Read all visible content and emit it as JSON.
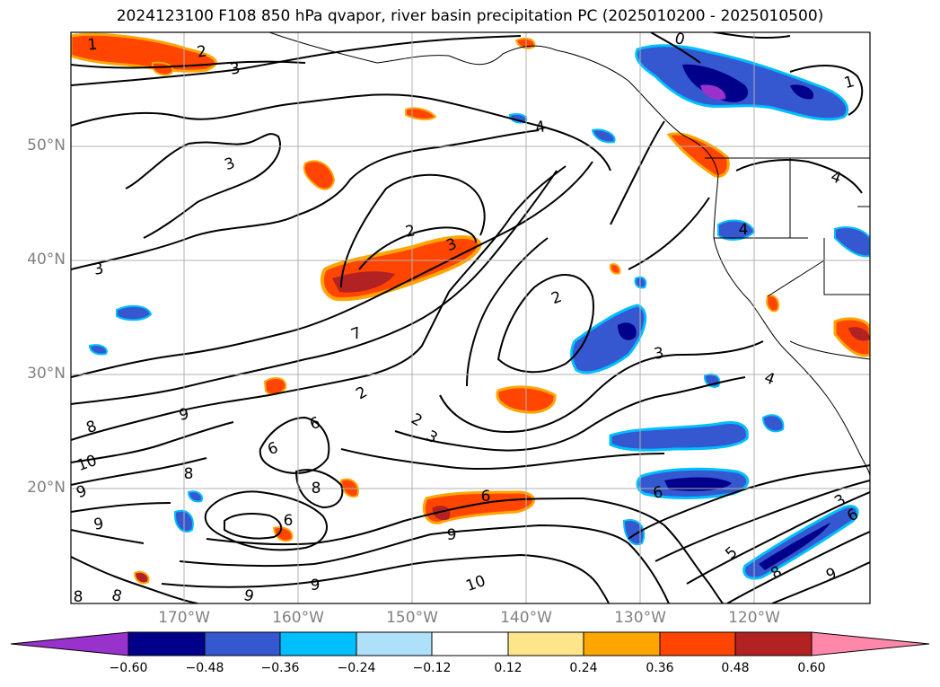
{
  "title": "2024123100 F108 850 hPa qvapor, river basin precipitation PC (2025010200 - 2025010500)",
  "lat_labels": [
    "50°N",
    "40°N",
    "30°N",
    "20°N"
  ],
  "lon_labels": [
    "170°W",
    "160°W",
    "150°W",
    "140°W",
    "130°W",
    "120°W"
  ],
  "colorbar": {
    "ticks": [
      "−0.60",
      "−0.48",
      "−0.36",
      "−0.24",
      "−0.12",
      "0.12",
      "0.24",
      "0.36",
      "0.48",
      "0.60"
    ],
    "colors": [
      "#9932cc",
      "#00008b",
      "#3557cf",
      "#00bfff",
      "#afe0fa",
      "#ffffff",
      "#fde68a",
      "#ffa500",
      "#ff4500",
      "#b22222",
      "#ff88aa"
    ]
  },
  "contour_labels": [
    "1",
    "2",
    "3",
    "0",
    "1",
    "4",
    "3",
    "2",
    "3",
    "3",
    "2",
    "4",
    "3",
    "4",
    "7",
    "2",
    "3",
    "2",
    "9",
    "8",
    "10",
    "9",
    "6",
    "6",
    "8",
    "6",
    "9",
    "8",
    "9",
    "8",
    "9",
    "8",
    "6",
    "9",
    "10",
    "5",
    "6",
    "3",
    "6",
    "8",
    "9",
    "4"
  ],
  "colors": {
    "grid": "#b0b0b0",
    "contour": "#000000",
    "tick_label": "#808080"
  }
}
